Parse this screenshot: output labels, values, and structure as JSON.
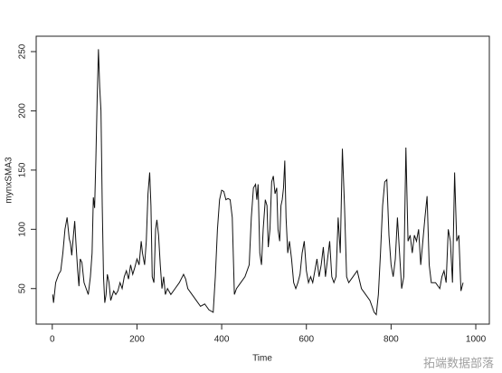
{
  "chart_data": {
    "type": "line",
    "x_label": "Time",
    "y_label": "mynxSMA3",
    "watermark": "拓端数据部落",
    "xlim": [
      -38,
      1032
    ],
    "ylim": [
      20,
      263
    ],
    "xticks": [
      0,
      200,
      400,
      600,
      800,
      1000
    ],
    "yticks": [
      50,
      100,
      150,
      200,
      250
    ],
    "series": [
      {
        "color": "#111111",
        "x": [
          1,
          3,
          8,
          15,
          20,
          25,
          30,
          35,
          40,
          43,
          46,
          50,
          53,
          56,
          60,
          63,
          66,
          70,
          75,
          80,
          85,
          90,
          94,
          97,
          100,
          103,
          106,
          109,
          112,
          115,
          118,
          121,
          124,
          127,
          130,
          134,
          138,
          145,
          150,
          155,
          160,
          165,
          170,
          175,
          180,
          185,
          190,
          195,
          200,
          205,
          210,
          213,
          218,
          222,
          226,
          230,
          233,
          236,
          240,
          244,
          247,
          251,
          255,
          259,
          263,
          267,
          272,
          280,
          290,
          300,
          310,
          315,
          320,
          330,
          340,
          350,
          360,
          370,
          380,
          385,
          390,
          395,
          400,
          405,
          410,
          415,
          420,
          425,
          430,
          435,
          445,
          455,
          465,
          470,
          475,
          480,
          483,
          486,
          490,
          494,
          498,
          503,
          507,
          510,
          514,
          518,
          522,
          526,
          530,
          533,
          537,
          540,
          543,
          546,
          549,
          552,
          556,
          560,
          565,
          570,
          575,
          580,
          585,
          590,
          595,
          600,
          605,
          610,
          615,
          620,
          625,
          630,
          635,
          640,
          645,
          650,
          655,
          660,
          665,
          670,
          675,
          680,
          685,
          690,
          695,
          700,
          710,
          720,
          730,
          740,
          750,
          760,
          765,
          770,
          775,
          780,
          785,
          790,
          795,
          800,
          805,
          810,
          815,
          820,
          825,
          830,
          835,
          840,
          845,
          850,
          855,
          860,
          865,
          870,
          875,
          880,
          885,
          890,
          895,
          905,
          915,
          920,
          925,
          930,
          935,
          940,
          945,
          950,
          955,
          960,
          965,
          970
        ],
        "values": [
          45,
          38,
          55,
          62,
          65,
          80,
          100,
          110,
          92,
          88,
          78,
          95,
          107,
          88,
          65,
          52,
          75,
          72,
          55,
          50,
          45,
          60,
          80,
          127,
          118,
          160,
          210,
          252,
          220,
          200,
          120,
          60,
          38,
          45,
          62,
          55,
          40,
          48,
          45,
          48,
          55,
          50,
          60,
          65,
          58,
          70,
          62,
          68,
          75,
          70,
          90,
          80,
          70,
          90,
          130,
          148,
          120,
          60,
          55,
          100,
          108,
          95,
          70,
          50,
          60,
          45,
          50,
          45,
          50,
          55,
          62,
          58,
          50,
          45,
          40,
          35,
          37,
          32,
          30,
          60,
          100,
          125,
          133,
          132,
          125,
          126,
          125,
          110,
          45,
          50,
          55,
          60,
          70,
          110,
          135,
          138,
          125,
          138,
          80,
          70,
          100,
          125,
          120,
          85,
          100,
          140,
          145,
          130,
          135,
          100,
          90,
          120,
          125,
          135,
          158,
          110,
          80,
          90,
          75,
          55,
          50,
          55,
          62,
          80,
          90,
          65,
          55,
          60,
          55,
          65,
          75,
          60,
          70,
          85,
          60,
          75,
          90,
          60,
          55,
          60,
          110,
          80,
          168,
          120,
          60,
          55,
          60,
          65,
          50,
          45,
          40,
          30,
          28,
          45,
          80,
          120,
          140,
          142,
          95,
          70,
          60,
          75,
          110,
          80,
          50,
          60,
          169,
          90,
          95,
          80,
          95,
          90,
          100,
          70,
          90,
          110,
          128,
          70,
          55,
          55,
          50,
          60,
          65,
          55,
          100,
          90,
          55,
          148,
          90,
          95,
          48,
          55
        ]
      }
    ]
  }
}
